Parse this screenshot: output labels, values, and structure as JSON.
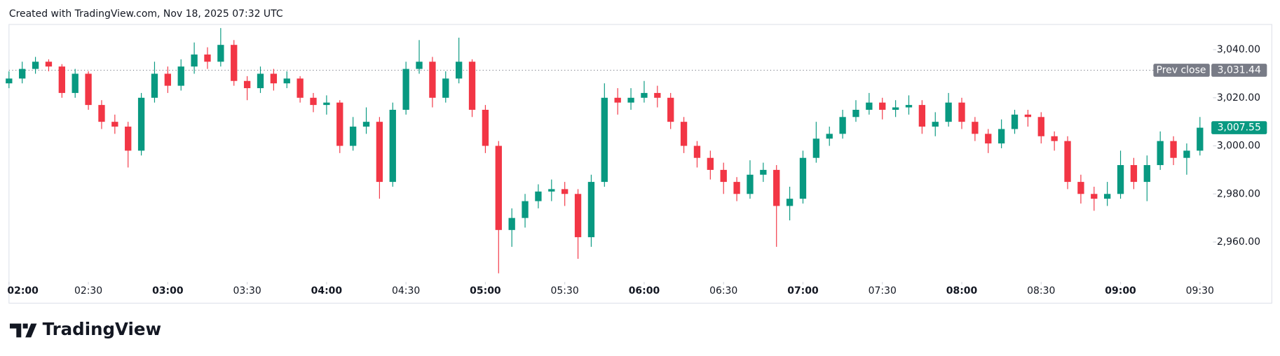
{
  "header": {
    "text": "Created with TradingView.com, Nov 18, 2025 07:32 UTC"
  },
  "footer": {
    "brand": "TradingView"
  },
  "chart_data": {
    "type": "candlestick",
    "x": [
      "02:00",
      "02:05",
      "02:10",
      "02:15",
      "02:20",
      "02:25",
      "02:30",
      "02:35",
      "02:40",
      "02:45",
      "02:50",
      "02:55",
      "03:00",
      "03:05",
      "03:10",
      "03:15",
      "03:20",
      "03:25",
      "03:30",
      "03:35",
      "03:40",
      "03:45",
      "03:50",
      "03:55",
      "04:00",
      "04:05",
      "04:10",
      "04:15",
      "04:20",
      "04:25",
      "04:30",
      "04:35",
      "04:40",
      "04:45",
      "04:50",
      "04:55",
      "05:00",
      "05:05",
      "05:10",
      "05:15",
      "05:20",
      "05:25",
      "05:30",
      "05:35",
      "05:40",
      "05:45",
      "05:50",
      "05:55",
      "06:00",
      "06:05",
      "06:10",
      "06:15",
      "06:20",
      "06:25",
      "06:30",
      "06:35",
      "06:40",
      "06:45",
      "06:50",
      "06:55",
      "07:00",
      "07:05",
      "07:10",
      "07:15",
      "07:20",
      "07:25",
      "07:30",
      "07:35",
      "07:40",
      "07:45",
      "07:50",
      "07:55",
      "08:00",
      "08:05",
      "08:10",
      "08:15",
      "08:20",
      "08:25",
      "08:30",
      "08:35",
      "08:40",
      "08:45",
      "08:50",
      "08:55",
      "09:00",
      "09:05",
      "09:10",
      "09:15",
      "09:20",
      "09:25",
      "09:30"
    ],
    "open": [
      3026,
      3028,
      3032,
      3035,
      3033,
      3022,
      3030,
      3017,
      3010,
      3008,
      2998,
      3020,
      3030,
      3025,
      3033,
      3038,
      3035,
      3042,
      3027,
      3024,
      3030,
      3026,
      3028,
      3020,
      3017,
      3018,
      3000,
      3008,
      3010,
      2985,
      3015,
      3032,
      3035,
      3020,
      3028,
      3035,
      3015,
      3000,
      2965,
      2970,
      2977,
      2981,
      2982,
      2980,
      2962,
      2985,
      3020,
      3018,
      3020,
      3022,
      3020,
      3010,
      3000,
      2995,
      2990,
      2985,
      2980,
      2988,
      2990,
      2975,
      2978,
      2995,
      3003,
      3005,
      3012,
      3015,
      3018,
      3015,
      3016,
      3017,
      3008,
      3010,
      3018,
      3010,
      3005,
      3001,
      3007,
      3013,
      3012,
      3004,
      3002,
      2985,
      2980,
      2978,
      2980,
      2992,
      2985,
      2992,
      3002,
      2995,
      2998
    ],
    "high": [
      3031,
      3035,
      3037,
      3036,
      3034,
      3032,
      3031,
      3019,
      3013,
      3010,
      3022,
      3035,
      3033,
      3036,
      3043,
      3041,
      3049,
      3044,
      3029,
      3033,
      3032,
      3031,
      3029,
      3022,
      3021,
      3019,
      3012,
      3016,
      3012,
      3018,
      3035,
      3044,
      3037,
      3031,
      3045,
      3036,
      3017,
      3002,
      2974,
      2980,
      2984,
      2986,
      2985,
      2982,
      2988,
      3026,
      3024,
      3024,
      3027,
      3025,
      3022,
      3012,
      3002,
      2998,
      2993,
      2987,
      2994,
      2993,
      2992,
      2983,
      2998,
      3010,
      3008,
      3015,
      3019,
      3022,
      3020,
      3019,
      3021,
      3019,
      3014,
      3022,
      3020,
      3012,
      3007,
      3011,
      3015,
      3015,
      3014,
      3006,
      3004,
      2988,
      2983,
      2985,
      2998,
      2995,
      2996,
      3006,
      3004,
      3001,
      3012
    ],
    "low": [
      3024,
      3026,
      3030,
      3031,
      3020,
      3020,
      3015,
      3007,
      3005,
      2991,
      2996,
      3018,
      3022,
      3023,
      3030,
      3032,
      3033,
      3025,
      3019,
      3022,
      3023,
      3024,
      3018,
      3014,
      3013,
      2997,
      2998,
      3005,
      2978,
      2983,
      3013,
      3030,
      3016,
      3018,
      3026,
      3012,
      2997,
      2947,
      2958,
      2966,
      2974,
      2977,
      2975,
      2953,
      2958,
      2983,
      3013,
      3015,
      3018,
      3016,
      3007,
      2997,
      2991,
      2986,
      2980,
      2977,
      2978,
      2985,
      2958,
      2969,
      2976,
      2993,
      3000,
      3003,
      3010,
      3013,
      3011,
      3012,
      3013,
      3005,
      3004,
      3008,
      3007,
      3002,
      2997,
      2999,
      3005,
      3008,
      3001,
      2998,
      2982,
      2976,
      2973,
      2975,
      2978,
      2982,
      2977,
      2990,
      2992,
      2988,
      2996
    ],
    "close": [
      3028,
      3032,
      3035,
      3033,
      3022,
      3030,
      3017,
      3010,
      3008,
      2998,
      3020,
      3030,
      3025,
      3033,
      3038,
      3035,
      3042,
      3027,
      3024,
      3030,
      3026,
      3028,
      3020,
      3017,
      3018,
      3000,
      3008,
      3010,
      2985,
      3015,
      3032,
      3035,
      3020,
      3028,
      3035,
      3015,
      3000,
      2965,
      2970,
      2977,
      2981,
      2982,
      2980,
      2962,
      2985,
      3020,
      3018,
      3020,
      3022,
      3020,
      3010,
      3000,
      2995,
      2990,
      2985,
      2980,
      2988,
      2990,
      2975,
      2978,
      2995,
      3003,
      3005,
      3012,
      3015,
      3018,
      3015,
      3016,
      3017,
      3008,
      3010,
      3018,
      3010,
      3005,
      3001,
      3007,
      3013,
      3012,
      3004,
      3002,
      2985,
      2980,
      2978,
      2980,
      2992,
      2985,
      2992,
      3002,
      2995,
      2998,
      3007.55
    ],
    "up_color": "#089981",
    "down_color": "#f23645",
    "ylim": [
      2945.4,
      3050.5
    ],
    "yticks": [
      {
        "value": 2960,
        "label": "2,960.00"
      },
      {
        "value": 2980,
        "label": "2,980.00"
      },
      {
        "value": 3000,
        "label": "3,000.00"
      },
      {
        "value": 3020,
        "label": "3,020.00"
      },
      {
        "value": 3040,
        "label": "3,040.00"
      }
    ],
    "xticks": [
      "02:00",
      "02:30",
      "03:00",
      "03:30",
      "04:00",
      "04:30",
      "05:00",
      "05:30",
      "06:00",
      "06:30",
      "07:00",
      "07:30",
      "08:00",
      "08:30",
      "09:00",
      "09:30"
    ],
    "prev_close": {
      "label": "Prev close",
      "value": 3031.44,
      "value_label": "3,031.44",
      "color": "#787b86"
    },
    "last_price": {
      "value": 3007.55,
      "label": "3,007.55",
      "color": "#089981"
    }
  }
}
